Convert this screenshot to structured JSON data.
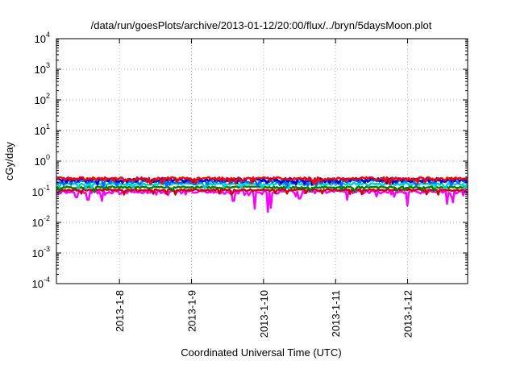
{
  "chart_data": {
    "type": "line",
    "title": "/data/run/goesPlots/archive/2013-01-12/20:00/flux/../bryn/5daysMoon.plot",
    "xlabel": "Coordinated Universal Time (UTC)",
    "ylabel": "cGy/day",
    "yscale": "log",
    "ylim": [
      0.0001,
      10000
    ],
    "xlim": [
      "2013-01-07T03:00",
      "2013-01-12T20:00"
    ],
    "grid": true,
    "legend": "none",
    "x_ticks": [
      {
        "label": "2013-1-8",
        "x": "2013-01-08T00:00"
      },
      {
        "label": "2013-1-9",
        "x": "2013-01-09T00:00"
      },
      {
        "label": "2013-1-10",
        "x": "2013-01-10T00:00"
      },
      {
        "label": "2013-1-11",
        "x": "2013-01-11T00:00"
      },
      {
        "label": "2013-1-12",
        "x": "2013-01-12T00:00"
      }
    ],
    "y_ticks": [
      {
        "value": 0.0001,
        "base": "10",
        "exp": "-4"
      },
      {
        "value": 0.001,
        "base": "10",
        "exp": "-3"
      },
      {
        "value": 0.01,
        "base": "10",
        "exp": "-2"
      },
      {
        "value": 0.1,
        "base": "10",
        "exp": "-1"
      },
      {
        "value": 1,
        "base": "10",
        "exp": "0"
      },
      {
        "value": 10,
        "base": "10",
        "exp": "1"
      },
      {
        "value": 100,
        "base": "10",
        "exp": "2"
      },
      {
        "value": 1000,
        "base": "10",
        "exp": "3"
      },
      {
        "value": 10000,
        "base": "10",
        "exp": "4"
      }
    ],
    "series": [
      {
        "color": "#ff00ff",
        "base": 0.1,
        "noise": 0.25,
        "dips": [
          {
            "x": "2013-01-07T13:30",
            "y": 0.055
          },
          {
            "x": "2013-01-07T18:00",
            "y": 0.05
          },
          {
            "x": "2013-01-09T14:00",
            "y": 0.05
          },
          {
            "x": "2013-01-09T21:00",
            "y": 0.028
          },
          {
            "x": "2013-01-10T01:30",
            "y": 0.022
          },
          {
            "x": "2013-01-10T02:30",
            "y": 0.03
          },
          {
            "x": "2013-01-10T12:00",
            "y": 0.06
          },
          {
            "x": "2013-01-11T04:00",
            "y": 0.055
          },
          {
            "x": "2013-01-12T00:00",
            "y": 0.035
          },
          {
            "x": "2013-01-12T13:00",
            "y": 0.04
          },
          {
            "x": "2013-01-12T15:00",
            "y": 0.045
          }
        ]
      },
      {
        "color": "#cc0000",
        "base": 0.115,
        "noise": 0.12
      },
      {
        "color": "#008000",
        "base": 0.14,
        "noise": 0.15
      },
      {
        "color": "#00d0d0",
        "base": 0.18,
        "noise": 0.18
      },
      {
        "color": "#0066ff",
        "base": 0.22,
        "noise": 0.25
      },
      {
        "color": "#0000cc",
        "base": 0.25,
        "noise": 0.3
      },
      {
        "color": "#ff0000",
        "base": 0.27,
        "noise": 0.25
      }
    ]
  }
}
